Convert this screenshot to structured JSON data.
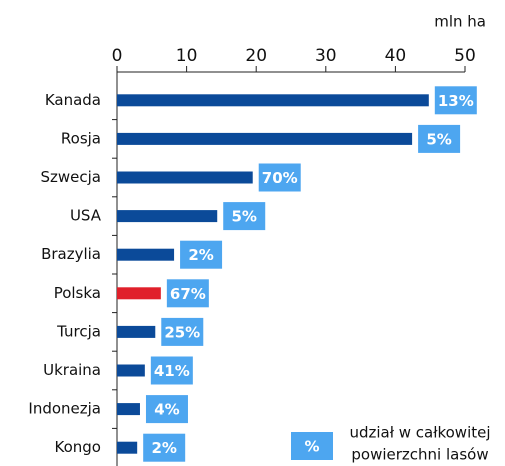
{
  "chart_data": {
    "type": "bar",
    "orientation": "horizontal",
    "x_label": "mln ha",
    "categories": [
      "Kanada",
      "Rosja",
      "Szwecja",
      "USA",
      "Brazylia",
      "Polska",
      "Turcja",
      "Ukraina",
      "Indonezja",
      "Kongo"
    ],
    "values": [
      44.8,
      42.4,
      19.5,
      14.4,
      8.2,
      6.3,
      5.5,
      4.0,
      3.3,
      2.9
    ],
    "colors": [
      "#0b4a99",
      "#0b4a99",
      "#0b4a99",
      "#0b4a99",
      "#0b4a99",
      "#e0202a",
      "#0b4a99",
      "#0b4a99",
      "#0b4a99",
      "#0b4a99"
    ],
    "shares": [
      "13%",
      "5%",
      "70%",
      "5%",
      "2%",
      "67%",
      "25%",
      "41%",
      "4%",
      "2%"
    ],
    "share_color": "#4da6f0",
    "legend_symbol": "%",
    "legend_label": [
      "udział w całkowitej",
      "powierzchni lasów"
    ],
    "xlim": [
      0,
      50
    ],
    "xticks": [
      0,
      10,
      20,
      30,
      40,
      50
    ]
  }
}
